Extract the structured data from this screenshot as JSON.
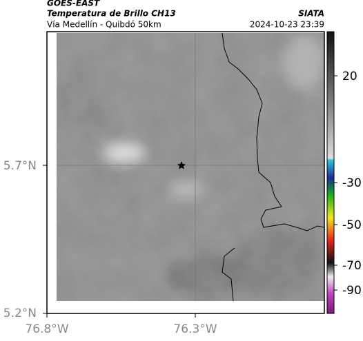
{
  "header": {
    "title": "GOES-EAST",
    "subtitle": "Temperatura de Brillo CH13",
    "source": "SIATA",
    "region": "Vía Medellín - Quibdó 50km",
    "datetime": "2024-10-23 23:39"
  },
  "map": {
    "lat_labels": [
      "5.7°N",
      "5.2°N"
    ],
    "lon_labels": [
      "76.8°W",
      "76.3°W"
    ]
  },
  "colorbar": {
    "ticks": [
      20,
      -30,
      -50,
      -70,
      -90
    ]
  }
}
